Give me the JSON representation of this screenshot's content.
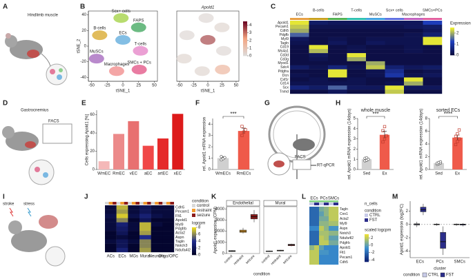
{
  "panel_labels": [
    "A",
    "B",
    "C",
    "D",
    "E",
    "F",
    "G",
    "H",
    "I",
    "J",
    "K",
    "L",
    "M"
  ],
  "illustration_texts": {
    "hindlimb": "Hindlimb muscle",
    "gastro": "Gastrocnemius",
    "facs": "FACS",
    "rtqpcr": "RT-qPCR",
    "stroke": "stroke",
    "stress": "stress"
  },
  "chart_data": [
    {
      "type": "scatter",
      "xlabel": "tSNE_1",
      "ylabel": "tSNE_2",
      "xlim": [
        -55,
        55
      ],
      "ylim": [
        -45,
        45
      ],
      "xticks": [
        -50,
        -25,
        0,
        25,
        50
      ],
      "yticks": [
        -40,
        -20,
        0,
        20,
        40
      ],
      "labels": [
        "Scx+ cells",
        "FAPS",
        "B-cells",
        "ECs",
        "T-cells",
        "MuSCs",
        "Macrophages",
        "SMCs + PCs"
      ],
      "x": [
        -3,
        25,
        -37,
        0,
        28,
        -42,
        -10,
        26
      ],
      "y": [
        36,
        24,
        14,
        8,
        -6,
        -16,
        -32,
        -30
      ],
      "colors": [
        "#9acd32",
        "#2e9e4f",
        "#d4a017",
        "#4fa3d9",
        "#e377c2",
        "#9b59b6",
        "#f08080",
        "#e0457b"
      ]
    },
    {
      "type": "scatter",
      "title": "Apold1",
      "xlabel": "tSNE_1",
      "xlim": [
        -55,
        55
      ],
      "ylim": [
        -45,
        45
      ],
      "xticks": [
        -50,
        -25,
        0,
        25,
        50
      ],
      "x": [
        -3,
        25,
        -37,
        0,
        28,
        -42,
        -10,
        26
      ],
      "y": [
        36,
        24,
        14,
        8,
        -6,
        -16,
        -32,
        -30
      ],
      "values": [
        0.2,
        0.3,
        0.2,
        3.5,
        0.2,
        0.3,
        0.3,
        1.5
      ],
      "zlim": [
        0,
        4.5
      ],
      "zticks": [
        0,
        1,
        2,
        3,
        4
      ],
      "colorscale": [
        "#dcdcdc",
        "#f4a582",
        "#67001f"
      ]
    },
    {
      "type": "heatmap",
      "columns": [
        "ECs",
        "B-cells",
        "FAPS",
        "T-cells",
        "MuSCs",
        "Scx+ cells",
        "Macrophages",
        "SMCs+PCs"
      ],
      "column_colors": [
        "#e8a040",
        "#c8a020",
        "#50b050",
        "#30c0b0",
        "#40a0e0",
        "#6070e0",
        "#c060c0",
        "#e060a0"
      ],
      "rows": [
        "Apold1",
        "Pecam1",
        "Cdh5",
        "Pdgfb",
        "Myl9",
        "Tagln",
        "Cd19",
        "Ms4a1",
        "Cd3d",
        "Cd3g",
        "Myod1",
        "Sdc4",
        "Pdgfra",
        "Dcn",
        "Csf1r",
        "Cd14",
        "Scx",
        "Tnmd"
      ],
      "values": [
        [
          2.4,
          0.4,
          0.3,
          0.3,
          0.3,
          0.3,
          0.3,
          1.2
        ],
        [
          2.2,
          0.2,
          0.2,
          0.2,
          0.2,
          0.2,
          0.3,
          0.4
        ],
        [
          2.0,
          0.1,
          0.1,
          0.1,
          0.1,
          0.1,
          0.1,
          0.3
        ],
        [
          1.5,
          0.1,
          0.1,
          0.1,
          0.1,
          0.1,
          0.2,
          0.5
        ],
        [
          0.3,
          0.1,
          0.2,
          0.1,
          0.2,
          0.2,
          0.2,
          2.4
        ],
        [
          0.2,
          0.1,
          0.3,
          0.1,
          0.3,
          0.2,
          0.2,
          2.4
        ],
        [
          0.1,
          2.4,
          0.1,
          0.2,
          0.1,
          0.1,
          0.2,
          0.1
        ],
        [
          0.1,
          2.1,
          0.1,
          0.2,
          0.1,
          0.1,
          0.2,
          0.1
        ],
        [
          0.1,
          0.3,
          0.1,
          2.4,
          0.1,
          0.1,
          0.1,
          0.1
        ],
        [
          0.1,
          0.2,
          0.1,
          2.0,
          0.1,
          0.1,
          0.1,
          0.1
        ],
        [
          0.1,
          0.1,
          0.1,
          0.1,
          2.0,
          0.1,
          0.1,
          0.1
        ],
        [
          0.4,
          0.2,
          0.6,
          0.2,
          2.2,
          0.5,
          0.3,
          0.4
        ],
        [
          0.1,
          0.1,
          2.4,
          0.1,
          0.2,
          0.8,
          0.1,
          0.2
        ],
        [
          0.2,
          0.1,
          2.4,
          0.1,
          0.2,
          1.0,
          0.2,
          0.3
        ],
        [
          0.1,
          0.2,
          0.1,
          0.2,
          0.1,
          0.1,
          2.4,
          0.1
        ],
        [
          0.2,
          0.2,
          0.2,
          0.2,
          0.1,
          0.2,
          2.0,
          0.1
        ],
        [
          0.6,
          0.4,
          1.5,
          0.3,
          0.3,
          2.4,
          0.3,
          0.3
        ],
        [
          0.1,
          0.1,
          0.3,
          0.1,
          0.1,
          2.2,
          0.1,
          0.1
        ]
      ],
      "zlim": [
        0,
        2.5
      ],
      "zticks": [
        0,
        1,
        2
      ],
      "colorbar_title": "Expression",
      "colorscale": [
        "#0b0b3b",
        "#1f3fbf",
        "#f5f52a"
      ]
    },
    {
      "type": "bar",
      "ylabel": "Cells expressing Apold1 [%]",
      "categories": [
        "WmEC",
        "RmEC",
        "vEC",
        "aEC",
        "artEC",
        "xEC"
      ],
      "values": [
        9,
        39,
        53,
        26,
        34,
        61
      ],
      "colors": [
        "#f4b8b8",
        "#ec8a8a",
        "#e87070",
        "#f04848",
        "#e52a2a",
        "#dd1a1a"
      ],
      "ylim": [
        0,
        65
      ],
      "yticks": [
        0,
        20,
        40,
        60
      ]
    },
    {
      "type": "bar",
      "ylabel": "rel. Apold1 mRNA expression",
      "categories": [
        "WmECs",
        "RmECs"
      ],
      "values": [
        1.0,
        3.4
      ],
      "errors": [
        0.12,
        0.25
      ],
      "points": [
        [
          0.85,
          0.95,
          1.05,
          1.15
        ],
        [
          3.0,
          3.3,
          3.5,
          3.8
        ]
      ],
      "colors": [
        "#d0d0d0",
        "#ef5a4a"
      ],
      "ylim": [
        0,
        4.5
      ],
      "yticks": [
        0,
        1,
        2,
        3,
        4
      ],
      "annotation": "***"
    },
    {
      "type": "bar",
      "title": "whole muscle",
      "ylabel": "rel. Apold1 mRNA expression (14days)",
      "categories": [
        "Sed",
        "Ex"
      ],
      "values": [
        1.0,
        3.4
      ],
      "errors": [
        0.1,
        0.35
      ],
      "points": [
        [
          0.85,
          0.9,
          1.0,
          1.1,
          1.15
        ],
        [
          2.7,
          3.0,
          3.3,
          3.8,
          4.2
        ]
      ],
      "colors": [
        "#d0d0d0",
        "#ef5a4a"
      ],
      "ylim": [
        0,
        5
      ],
      "yticks": [
        0,
        1,
        2,
        3,
        4,
        5
      ],
      "annotation": "***"
    },
    {
      "type": "bar",
      "title": "sorted ECs",
      "ylabel": "rel. Apold1 mRNA expression (14days)",
      "categories": [
        "Sed",
        "Ex"
      ],
      "values": [
        1.0,
        5.0
      ],
      "errors": [
        0.1,
        0.4
      ],
      "points": [
        [
          0.8,
          0.9,
          1.0,
          1.0,
          1.1,
          1.2
        ],
        [
          3.9,
          4.4,
          4.8,
          5.2,
          5.6,
          6.2
        ]
      ],
      "colors": [
        "#d0d0d0",
        "#ef5a4a"
      ],
      "ylim": [
        0,
        8
      ],
      "yticks": [
        0,
        2,
        4,
        6,
        8
      ],
      "annotation": "****"
    },
    {
      "type": "heatmap",
      "columns": [
        "ACs",
        "ECs",
        "MGs",
        "Mural",
        "Neurons",
        "Oligo/OPC"
      ],
      "rows": [
        "Cdh5",
        "Pecam1",
        "Flt1",
        "Apold1",
        "Myl9",
        "Pdgfrb",
        "Acta2",
        "Aspn",
        "Tagln",
        "Notch3",
        "Ndufa4l2"
      ],
      "values": [
        [
          1,
          7,
          1,
          2,
          1,
          1
        ],
        [
          1,
          6.5,
          1,
          2,
          1,
          1
        ],
        [
          1.5,
          7.5,
          1.5,
          3,
          1.5,
          1
        ],
        [
          1,
          6,
          0.5,
          2,
          0.5,
          0.5
        ],
        [
          1,
          3,
          1,
          7,
          1,
          0.5
        ],
        [
          1,
          2.5,
          1,
          7,
          0.5,
          0.5
        ],
        [
          0.5,
          2,
          0.5,
          6.5,
          0.5,
          0.5
        ],
        [
          0.5,
          1,
          0.5,
          4,
          0.5,
          0.5
        ],
        [
          1,
          2,
          1,
          6,
          0.5,
          0.5
        ],
        [
          0.5,
          2,
          0.5,
          6,
          0.5,
          0.5
        ],
        [
          0.5,
          3,
          0.5,
          6.5,
          0.5,
          0.5
        ]
      ],
      "zlim": [
        0,
        8
      ],
      "zticks": [
        0,
        2,
        4,
        6,
        8
      ],
      "colorbar_title": "logcpm",
      "colorscale": [
        "#000022",
        "#1e2a8c",
        "#f0e020"
      ],
      "condition_title": "condition",
      "conditions": [
        "control",
        "restraint",
        "seizure"
      ],
      "condition_colors": [
        "#d9d9d9",
        "#f29a2e",
        "#8b1a1a"
      ]
    },
    {
      "type": "box",
      "ylabel": "Apold1 expression (CPM)",
      "xlabel": "condition",
      "categories": [
        "control",
        "restraint",
        "seizure"
      ],
      "colors": [
        "#cfcfcf",
        "#f5a623",
        "#8b1a1a"
      ],
      "ylim": [
        0,
        4200
      ],
      "yticks": [
        0,
        1000,
        2000,
        3000,
        4000
      ],
      "facets": [
        {
          "title": "Endothelial",
          "stats": [
            [
              150,
              180,
              220,
              260,
              300
            ],
            [
              1800,
              1900,
              2000,
              2100,
              2300
            ],
            [
              2800,
              3100,
              3300,
              3500,
              3900
            ]
          ]
        },
        {
          "title": "Mural",
          "stats": [
            [
              150,
              180,
              200,
              230,
              260
            ],
            [
              200,
              230,
              260,
              300,
              330
            ],
            [
              650,
              700,
              780,
              830,
              880
            ]
          ]
        }
      ]
    },
    {
      "type": "heatmap",
      "groups": [
        "ECs",
        "PCs",
        "SMCs"
      ],
      "rows": [
        "Tagln",
        "Cnn1",
        "Acta2",
        "Myl9",
        "Aspn",
        "Notch3",
        "Ndufa4l2",
        "Pdgfrb",
        "Apold1",
        "Flt1",
        "Pecam1",
        "Cdh5"
      ],
      "values": [
        [
          -2,
          -2,
          0.5,
          1,
          2,
          2
        ],
        [
          -2,
          -2,
          0,
          1,
          2,
          2
        ],
        [
          -2,
          -2,
          0.5,
          0.5,
          2,
          2
        ],
        [
          -2,
          -2,
          1,
          1,
          1.5,
          1.5
        ],
        [
          -1,
          -1,
          2,
          1,
          -0.5,
          -0.5
        ],
        [
          -2,
          -2,
          1.5,
          1.5,
          1,
          1
        ],
        [
          -2,
          -2,
          2,
          1.5,
          0,
          0
        ],
        [
          -2,
          -2,
          2,
          2,
          0.5,
          0.5
        ],
        [
          1,
          2,
          0,
          -1,
          -1,
          -1
        ],
        [
          2,
          2,
          -0.5,
          -0.5,
          -1,
          -1
        ],
        [
          2,
          2,
          -1,
          -1,
          -1,
          -1
        ],
        [
          2,
          2,
          -1,
          -1,
          -1,
          -1
        ]
      ],
      "zlim": [
        -4.5,
        3
      ],
      "zticks": [
        -4,
        -2,
        0,
        2
      ],
      "colorbar_title": "scaled logcpm",
      "colorscale": [
        "#0a1a6e",
        "#3a8fd0",
        "#f0e030"
      ],
      "ncells_title": "n_cells",
      "condition_title": "condition",
      "conditions": [
        "CTRL",
        "FST"
      ],
      "condition_colors": [
        "#c8cbe8",
        "#2b2d8a"
      ]
    },
    {
      "type": "box",
      "ylabel": "Apold1 expression (log2FC)",
      "xlabel": "cluster",
      "categories": [
        "ECs",
        "PCs",
        "SMCs"
      ],
      "legend_title": "condition",
      "ylim": [
        -5,
        3.5
      ],
      "yticks": [
        -4,
        -2,
        0,
        2
      ],
      "hline": 0,
      "series": [
        {
          "name": "CTRL",
          "color": "#c8cbe8",
          "stats": [
            [
              -0.4,
              -0.1,
              0,
              0.1,
              0.4
            ],
            [
              -0.2,
              -0.05,
              0,
              0.05,
              0.2
            ],
            [
              -0.2,
              -0.05,
              0,
              0.05,
              0.15
            ]
          ]
        },
        {
          "name": "FST",
          "color": "#2b2d8a",
          "stats": [
            [
              1.4,
              1.9,
              2.2,
              2.6,
              3.1
            ],
            [
              -4.6,
              -3.6,
              -2.6,
              -1.2,
              -0.3
            ],
            [
              -0.3,
              -0.1,
              0,
              0.05,
              0.2
            ]
          ]
        }
      ]
    }
  ]
}
